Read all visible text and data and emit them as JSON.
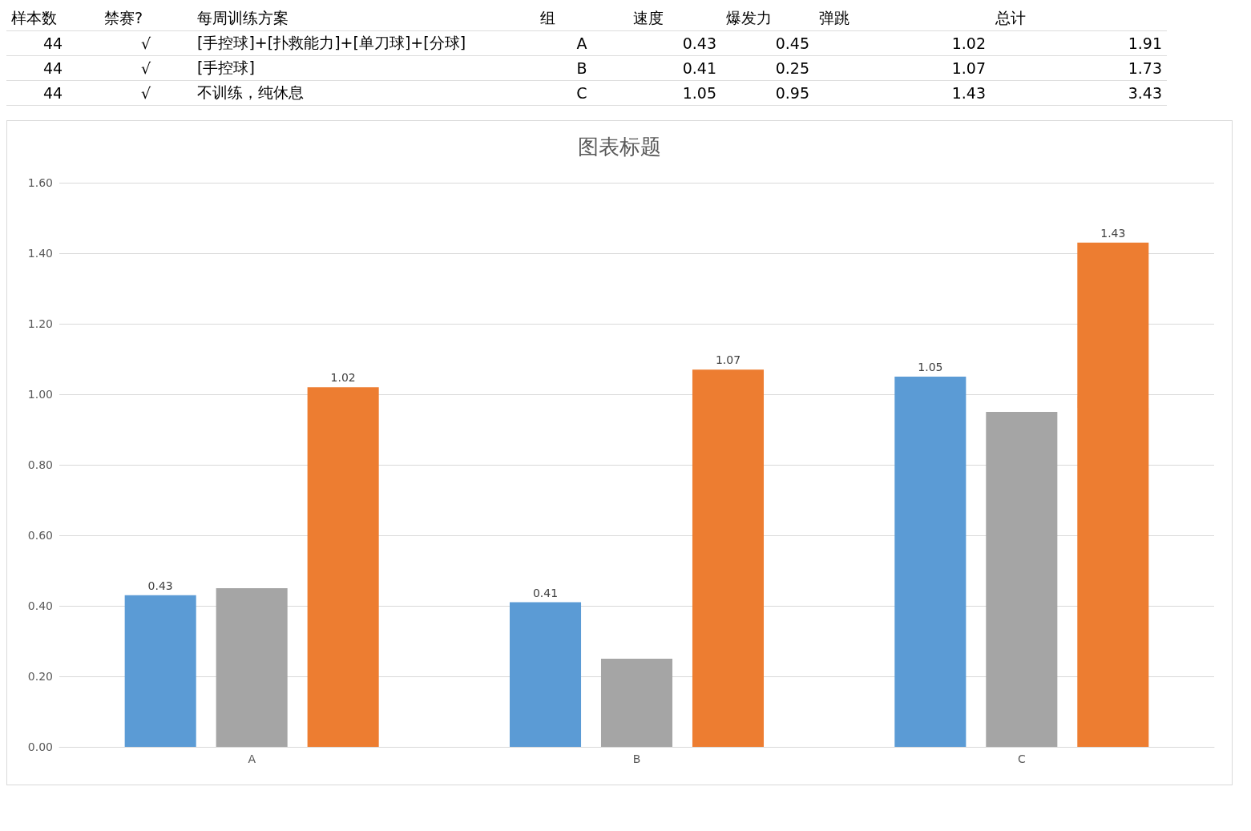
{
  "chart_data": [
    {
      "type": "other",
      "categories": [
        "样本数",
        "禁赛?",
        "每周训练方案",
        "组",
        "速度",
        "爆发力",
        "弹跳",
        "总计"
      ],
      "cell_labels": [
        [
          "44",
          "√",
          "[手控球]+[扑救能力]+[单刀球]+[分球]",
          "A",
          "0.43",
          "0.45",
          "1.02",
          "1.91"
        ],
        [
          "44",
          "√",
          "[手控球]",
          "B",
          "0.41",
          "0.25",
          "1.07",
          "1.73"
        ],
        [
          "44",
          "√",
          "不训练，纯休息",
          "C",
          "1.05",
          "0.95",
          "1.43",
          "3.43"
        ]
      ]
    },
    {
      "type": "bar",
      "title": "图表标题",
      "categories": [
        "A",
        "B",
        "C"
      ],
      "series": [
        {
          "color": "#5b9bd5",
          "values": [
            0.43,
            0.41,
            1.05
          ],
          "value_labels": [
            "0.43",
            "0.41",
            "1.05"
          ]
        },
        {
          "color": "#a5a5a5",
          "values": [
            0.45,
            0.25,
            0.95
          ]
        },
        {
          "color": "#ed7d31",
          "values": [
            1.02,
            1.07,
            1.43
          ],
          "value_labels": [
            "1.02",
            "1.07",
            "1.43"
          ]
        }
      ],
      "ylim": [
        0,
        1.6
      ],
      "yticks": [
        {
          "value": 0,
          "label": "0.00"
        },
        {
          "value": 0.2,
          "label": "0.20"
        },
        {
          "value": 0.4,
          "label": "0.40"
        },
        {
          "value": 0.6,
          "label": "0.60"
        },
        {
          "value": 0.8,
          "label": "0.80"
        },
        {
          "value": 1,
          "label": "1.00"
        },
        {
          "value": 1.2,
          "label": "1.20"
        },
        {
          "value": 1.4,
          "label": "1.40"
        },
        {
          "value": 1.6,
          "label": "1.60"
        }
      ],
      "grid": "y"
    }
  ]
}
